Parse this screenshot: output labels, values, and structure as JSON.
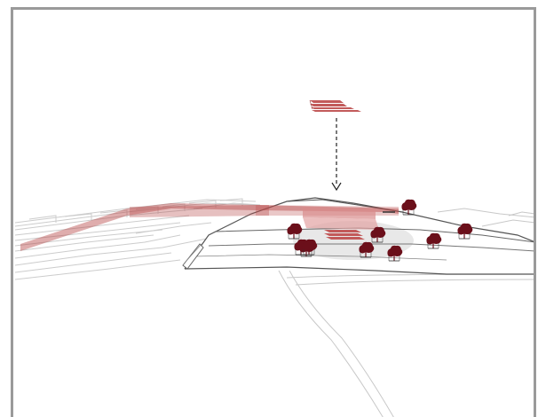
{
  "diagram": {
    "type": "3d-site-axonometric",
    "colors": {
      "frame": "#9a9a9a",
      "context_lines": "#c8c8c8",
      "terrain_lines": "#555555",
      "terrain_fill": "#e6e6e6",
      "path_fill": "#b84a4a",
      "building_fill": "#d98b8b",
      "building_stroke": "#b84a4a",
      "tree": "#6b0f1a",
      "arrow": "#222222"
    },
    "icons": [
      "tree-icon",
      "dashed-arrow-down-icon",
      "stacked-building-icon"
    ],
    "tree_count": 10
  }
}
